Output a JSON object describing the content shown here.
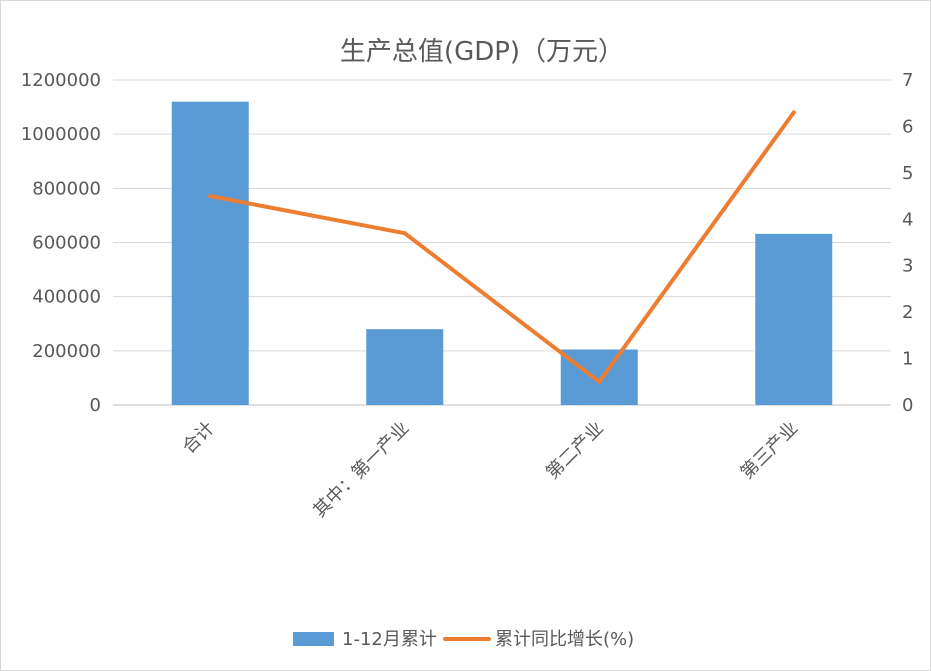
{
  "chart_data": {
    "type": "bar",
    "title": "生产总值(GDP)（万元）",
    "categories": [
      "合计",
      "其中：第一产业",
      "第二产业",
      "第三产业"
    ],
    "series": [
      {
        "name": "1-12月累计",
        "type": "bar",
        "axis": "left",
        "color": "#5b9bd5",
        "values": [
          1120000,
          280000,
          205000,
          632000
        ]
      },
      {
        "name": "累计同比增长(%)",
        "type": "line",
        "axis": "right",
        "color": "#ed7d31",
        "values": [
          4.5,
          3.7,
          0.5,
          6.3
        ]
      }
    ],
    "y_left": {
      "min": 0,
      "max": 1200000,
      "step": 200000,
      "ticks": [
        "0",
        "200000",
        "400000",
        "600000",
        "800000",
        "1000000",
        "1200000"
      ]
    },
    "y_right": {
      "min": 0,
      "max": 7,
      "step": 1,
      "ticks": [
        "0",
        "1",
        "2",
        "3",
        "4",
        "5",
        "6",
        "7"
      ]
    },
    "grid": true,
    "legend_position": "bottom"
  }
}
